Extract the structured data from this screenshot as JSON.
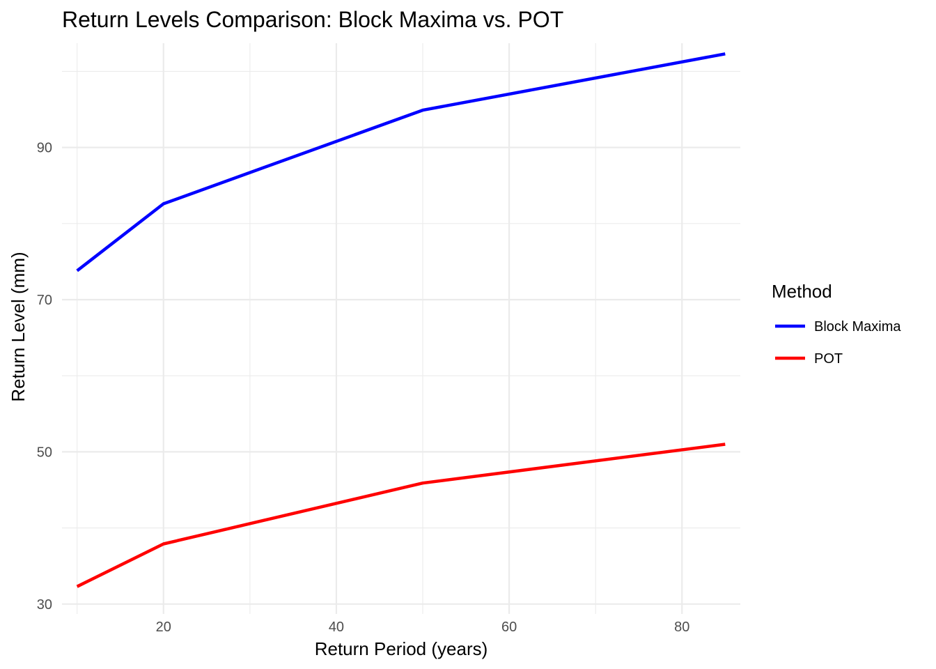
{
  "chart_data": {
    "type": "line",
    "title": "Return Levels Comparison: Block Maxima vs. POT",
    "xlabel": "Return Period (years)",
    "ylabel": "Return Level (mm)",
    "x": [
      10,
      20,
      50,
      85
    ],
    "xlim": [
      8.25,
      86.75
    ],
    "ylim": [
      28.7,
      103.7
    ],
    "x_ticks": [
      20,
      40,
      60,
      80
    ],
    "y_ticks": [
      30,
      50,
      70,
      90
    ],
    "grid": true,
    "legend": {
      "title": "Method",
      "placement": "right"
    },
    "series": [
      {
        "name": "Block Maxima",
        "color": "#0000ff",
        "values": [
          73.8,
          82.6,
          94.9,
          102.3
        ]
      },
      {
        "name": "POT",
        "color": "#ff0000",
        "values": [
          32.3,
          37.9,
          45.9,
          51.0
        ]
      }
    ]
  }
}
